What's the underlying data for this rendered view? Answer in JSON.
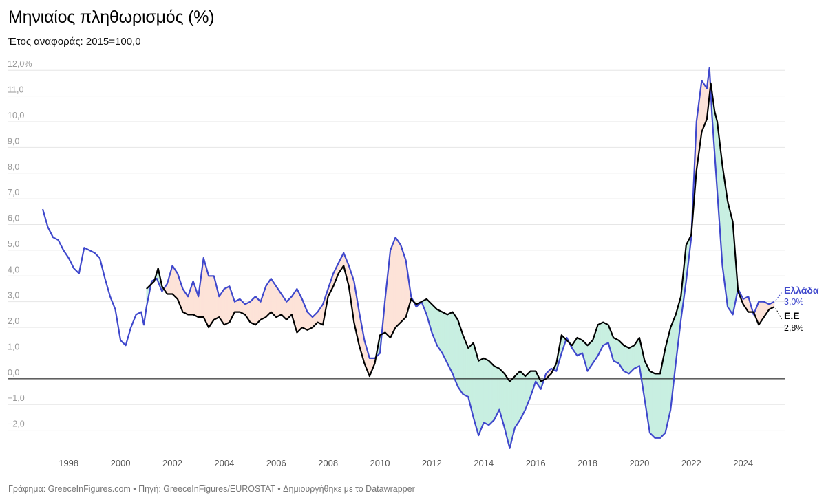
{
  "header": {
    "title": "Μηνιαίος πληθωρισμός (%)",
    "subtitle": "Έτος αναφοράς: 2015=100,0"
  },
  "footer": {
    "text": "Γράφημα: GreeceInFigures.com • Πηγή: GreeceInFigures/EUROSTAT • Δημιουργήθηκε με το Datawrapper"
  },
  "colors": {
    "greece": "#3f48cc",
    "eu": "#000000",
    "greece_above_fill": "#fde3d8",
    "eu_above_fill": "#c8efe1",
    "grid": "#e6e6e6",
    "zero_line": "#000000"
  },
  "chart_data": {
    "type": "line",
    "title": "Μηνιαίος πληθωρισμός (%)",
    "subtitle": "Έτος αναφοράς: 2015=100,0",
    "xlabel": "",
    "ylabel": "",
    "xlim": [
      1997.0,
      2025.6
    ],
    "ylim": [
      -3.0,
      12.3
    ],
    "y_ticks": [
      {
        "value": 12,
        "label": "12,0%"
      },
      {
        "value": 11,
        "label": "11,0"
      },
      {
        "value": 10,
        "label": "10,0"
      },
      {
        "value": 9,
        "label": "9,0"
      },
      {
        "value": 8,
        "label": "8,0"
      },
      {
        "value": 7,
        "label": "7,0"
      },
      {
        "value": 6,
        "label": "6,0"
      },
      {
        "value": 5,
        "label": "5,0"
      },
      {
        "value": 4,
        "label": "4,0"
      },
      {
        "value": 3,
        "label": "3,0"
      },
      {
        "value": 2,
        "label": "2,0"
      },
      {
        "value": 1,
        "label": "1,0"
      },
      {
        "value": 0,
        "label": "0,0"
      },
      {
        "value": -1,
        "label": "−1,0"
      },
      {
        "value": -2,
        "label": "−2,0"
      }
    ],
    "x_ticks": [
      {
        "value": 1998,
        "label": "1998"
      },
      {
        "value": 2000,
        "label": "2000"
      },
      {
        "value": 2002,
        "label": "2002"
      },
      {
        "value": 2004,
        "label": "2004"
      },
      {
        "value": 2006,
        "label": "2006"
      },
      {
        "value": 2008,
        "label": "2008"
      },
      {
        "value": 2010,
        "label": "2010"
      },
      {
        "value": 2012,
        "label": "2012"
      },
      {
        "value": 2014,
        "label": "2014"
      },
      {
        "value": 2016,
        "label": "2016"
      },
      {
        "value": 2018,
        "label": "2018"
      },
      {
        "value": 2020,
        "label": "2020"
      },
      {
        "value": 2022,
        "label": "2022"
      },
      {
        "value": 2024,
        "label": "2024"
      }
    ],
    "fills": [
      {
        "label": "Greece higher than EU",
        "color": "#fde3d8"
      },
      {
        "label": "EU higher than Greece",
        "color": "#c8efe1"
      }
    ],
    "series": [
      {
        "name": "Ελλάδα",
        "end_label": "Ελλάδα",
        "end_value_label": "3,0%",
        "color": "#3f48cc",
        "points": [
          [
            1997.0,
            6.6
          ],
          [
            1997.2,
            5.9
          ],
          [
            1997.4,
            5.5
          ],
          [
            1997.6,
            5.4
          ],
          [
            1997.8,
            5.0
          ],
          [
            1998.0,
            4.7
          ],
          [
            1998.2,
            4.3
          ],
          [
            1998.4,
            4.1
          ],
          [
            1998.6,
            5.1
          ],
          [
            1998.8,
            5.0
          ],
          [
            1999.0,
            4.9
          ],
          [
            1999.2,
            4.7
          ],
          [
            1999.4,
            3.9
          ],
          [
            1999.6,
            3.2
          ],
          [
            1999.8,
            2.7
          ],
          [
            2000.0,
            1.5
          ],
          [
            2000.2,
            1.3
          ],
          [
            2000.4,
            2.0
          ],
          [
            2000.6,
            2.5
          ],
          [
            2000.8,
            2.6
          ],
          [
            2000.9,
            2.1
          ],
          [
            2001.0,
            2.8
          ],
          [
            2001.2,
            3.8
          ],
          [
            2001.4,
            3.9
          ],
          [
            2001.6,
            3.4
          ],
          [
            2001.8,
            3.7
          ],
          [
            2002.0,
            4.4
          ],
          [
            2002.2,
            4.1
          ],
          [
            2002.4,
            3.5
          ],
          [
            2002.6,
            3.2
          ],
          [
            2002.8,
            3.8
          ],
          [
            2003.0,
            3.2
          ],
          [
            2003.2,
            4.7
          ],
          [
            2003.4,
            4.0
          ],
          [
            2003.6,
            4.0
          ],
          [
            2003.8,
            3.2
          ],
          [
            2004.0,
            3.5
          ],
          [
            2004.2,
            3.6
          ],
          [
            2004.4,
            3.0
          ],
          [
            2004.6,
            3.1
          ],
          [
            2004.8,
            2.9
          ],
          [
            2005.0,
            3.0
          ],
          [
            2005.2,
            3.2
          ],
          [
            2005.4,
            3.0
          ],
          [
            2005.6,
            3.6
          ],
          [
            2005.8,
            3.9
          ],
          [
            2006.0,
            3.6
          ],
          [
            2006.2,
            3.3
          ],
          [
            2006.4,
            3.0
          ],
          [
            2006.6,
            3.2
          ],
          [
            2006.8,
            3.5
          ],
          [
            2007.0,
            3.1
          ],
          [
            2007.2,
            2.6
          ],
          [
            2007.4,
            2.4
          ],
          [
            2007.6,
            2.6
          ],
          [
            2007.8,
            2.9
          ],
          [
            2008.0,
            3.5
          ],
          [
            2008.2,
            4.1
          ],
          [
            2008.4,
            4.5
          ],
          [
            2008.6,
            4.9
          ],
          [
            2008.8,
            4.4
          ],
          [
            2009.0,
            3.8
          ],
          [
            2009.2,
            2.6
          ],
          [
            2009.4,
            1.5
          ],
          [
            2009.6,
            0.8
          ],
          [
            2009.8,
            0.8
          ],
          [
            2010.0,
            1.0
          ],
          [
            2010.2,
            3.1
          ],
          [
            2010.4,
            5.0
          ],
          [
            2010.6,
            5.5
          ],
          [
            2010.8,
            5.2
          ],
          [
            2011.0,
            4.6
          ],
          [
            2011.2,
            3.2
          ],
          [
            2011.4,
            2.8
          ],
          [
            2011.6,
            3.0
          ],
          [
            2011.8,
            2.5
          ],
          [
            2012.0,
            1.8
          ],
          [
            2012.2,
            1.3
          ],
          [
            2012.4,
            1.0
          ],
          [
            2012.6,
            0.6
          ],
          [
            2012.8,
            0.2
          ],
          [
            2013.0,
            -0.3
          ],
          [
            2013.2,
            -0.6
          ],
          [
            2013.4,
            -0.7
          ],
          [
            2013.6,
            -1.5
          ],
          [
            2013.8,
            -2.2
          ],
          [
            2014.0,
            -1.7
          ],
          [
            2014.2,
            -1.8
          ],
          [
            2014.4,
            -1.6
          ],
          [
            2014.6,
            -1.2
          ],
          [
            2014.8,
            -1.9
          ],
          [
            2015.0,
            -2.7
          ],
          [
            2015.2,
            -1.9
          ],
          [
            2015.4,
            -1.6
          ],
          [
            2015.6,
            -1.2
          ],
          [
            2015.8,
            -0.7
          ],
          [
            2016.0,
            -0.1
          ],
          [
            2016.2,
            -0.4
          ],
          [
            2016.4,
            0.2
          ],
          [
            2016.6,
            0.4
          ],
          [
            2016.8,
            0.3
          ],
          [
            2017.0,
            1.0
          ],
          [
            2017.2,
            1.6
          ],
          [
            2017.4,
            1.2
          ],
          [
            2017.6,
            0.9
          ],
          [
            2017.8,
            1.0
          ],
          [
            2018.0,
            0.3
          ],
          [
            2018.2,
            0.6
          ],
          [
            2018.4,
            0.9
          ],
          [
            2018.6,
            1.3
          ],
          [
            2018.8,
            1.4
          ],
          [
            2019.0,
            0.7
          ],
          [
            2019.2,
            0.6
          ],
          [
            2019.4,
            0.3
          ],
          [
            2019.6,
            0.2
          ],
          [
            2019.8,
            0.4
          ],
          [
            2020.0,
            0.5
          ],
          [
            2020.2,
            -0.8
          ],
          [
            2020.4,
            -2.1
          ],
          [
            2020.6,
            -2.3
          ],
          [
            2020.8,
            -2.3
          ],
          [
            2021.0,
            -2.1
          ],
          [
            2021.2,
            -1.2
          ],
          [
            2021.4,
            0.6
          ],
          [
            2021.6,
            2.3
          ],
          [
            2021.8,
            3.8
          ],
          [
            2022.0,
            5.5
          ],
          [
            2022.2,
            10.0
          ],
          [
            2022.4,
            11.6
          ],
          [
            2022.6,
            11.3
          ],
          [
            2022.7,
            12.1
          ],
          [
            2022.8,
            10.2
          ],
          [
            2023.0,
            7.3
          ],
          [
            2023.2,
            4.4
          ],
          [
            2023.4,
            2.8
          ],
          [
            2023.6,
            2.5
          ],
          [
            2023.8,
            3.5
          ],
          [
            2024.0,
            3.1
          ],
          [
            2024.2,
            3.2
          ],
          [
            2024.4,
            2.5
          ],
          [
            2024.6,
            3.0
          ],
          [
            2024.8,
            3.0
          ],
          [
            2025.0,
            2.9
          ],
          [
            2025.2,
            3.0
          ]
        ]
      },
      {
        "name": "Ε.Ε",
        "end_label": "Ε.Ε",
        "end_value_label": "2,8%",
        "color": "#000000",
        "points": [
          [
            2001.0,
            3.5
          ],
          [
            2001.3,
            3.8
          ],
          [
            2001.45,
            4.3
          ],
          [
            2001.6,
            3.6
          ],
          [
            2001.8,
            3.3
          ],
          [
            2002.0,
            3.3
          ],
          [
            2002.2,
            3.1
          ],
          [
            2002.4,
            2.6
          ],
          [
            2002.6,
            2.5
          ],
          [
            2002.8,
            2.5
          ],
          [
            2003.0,
            2.4
          ],
          [
            2003.2,
            2.4
          ],
          [
            2003.4,
            2.0
          ],
          [
            2003.6,
            2.3
          ],
          [
            2003.8,
            2.4
          ],
          [
            2004.0,
            2.1
          ],
          [
            2004.2,
            2.2
          ],
          [
            2004.4,
            2.6
          ],
          [
            2004.6,
            2.6
          ],
          [
            2004.8,
            2.5
          ],
          [
            2005.0,
            2.2
          ],
          [
            2005.2,
            2.1
          ],
          [
            2005.4,
            2.3
          ],
          [
            2005.6,
            2.4
          ],
          [
            2005.8,
            2.6
          ],
          [
            2006.0,
            2.4
          ],
          [
            2006.2,
            2.5
          ],
          [
            2006.4,
            2.3
          ],
          [
            2006.6,
            2.5
          ],
          [
            2006.8,
            1.8
          ],
          [
            2007.0,
            2.0
          ],
          [
            2007.2,
            1.9
          ],
          [
            2007.4,
            2.0
          ],
          [
            2007.6,
            2.2
          ],
          [
            2007.8,
            2.1
          ],
          [
            2008.0,
            3.2
          ],
          [
            2008.2,
            3.6
          ],
          [
            2008.4,
            4.1
          ],
          [
            2008.6,
            4.4
          ],
          [
            2008.8,
            3.6
          ],
          [
            2009.0,
            2.2
          ],
          [
            2009.2,
            1.3
          ],
          [
            2009.4,
            0.6
          ],
          [
            2009.6,
            0.1
          ],
          [
            2009.8,
            0.6
          ],
          [
            2010.0,
            1.7
          ],
          [
            2010.2,
            1.8
          ],
          [
            2010.4,
            1.6
          ],
          [
            2010.6,
            2.0
          ],
          [
            2010.8,
            2.2
          ],
          [
            2011.0,
            2.4
          ],
          [
            2011.2,
            3.1
          ],
          [
            2011.4,
            2.9
          ],
          [
            2011.6,
            3.0
          ],
          [
            2011.8,
            3.1
          ],
          [
            2012.0,
            2.9
          ],
          [
            2012.2,
            2.7
          ],
          [
            2012.4,
            2.6
          ],
          [
            2012.6,
            2.5
          ],
          [
            2012.8,
            2.6
          ],
          [
            2013.0,
            2.3
          ],
          [
            2013.2,
            1.7
          ],
          [
            2013.4,
            1.2
          ],
          [
            2013.6,
            1.4
          ],
          [
            2013.8,
            0.7
          ],
          [
            2014.0,
            0.8
          ],
          [
            2014.2,
            0.7
          ],
          [
            2014.4,
            0.5
          ],
          [
            2014.6,
            0.4
          ],
          [
            2014.8,
            0.2
          ],
          [
            2015.0,
            -0.1
          ],
          [
            2015.2,
            0.1
          ],
          [
            2015.4,
            0.3
          ],
          [
            2015.6,
            0.1
          ],
          [
            2015.8,
            0.3
          ],
          [
            2016.0,
            0.3
          ],
          [
            2016.2,
            -0.1
          ],
          [
            2016.4,
            0.0
          ],
          [
            2016.6,
            0.2
          ],
          [
            2016.8,
            0.6
          ],
          [
            2017.0,
            1.7
          ],
          [
            2017.2,
            1.5
          ],
          [
            2017.4,
            1.3
          ],
          [
            2017.6,
            1.6
          ],
          [
            2017.8,
            1.5
          ],
          [
            2018.0,
            1.3
          ],
          [
            2018.2,
            1.5
          ],
          [
            2018.4,
            2.1
          ],
          [
            2018.6,
            2.2
          ],
          [
            2018.8,
            2.1
          ],
          [
            2019.0,
            1.6
          ],
          [
            2019.2,
            1.5
          ],
          [
            2019.4,
            1.3
          ],
          [
            2019.6,
            1.2
          ],
          [
            2019.8,
            1.3
          ],
          [
            2020.0,
            1.6
          ],
          [
            2020.2,
            0.7
          ],
          [
            2020.4,
            0.3
          ],
          [
            2020.6,
            0.2
          ],
          [
            2020.8,
            0.2
          ],
          [
            2021.0,
            1.2
          ],
          [
            2021.2,
            2.0
          ],
          [
            2021.4,
            2.5
          ],
          [
            2021.6,
            3.2
          ],
          [
            2021.8,
            5.2
          ],
          [
            2022.0,
            5.6
          ],
          [
            2022.2,
            8.1
          ],
          [
            2022.4,
            9.6
          ],
          [
            2022.6,
            10.1
          ],
          [
            2022.75,
            11.5
          ],
          [
            2022.9,
            10.4
          ],
          [
            2023.0,
            10.0
          ],
          [
            2023.2,
            8.3
          ],
          [
            2023.4,
            6.9
          ],
          [
            2023.6,
            6.1
          ],
          [
            2023.8,
            3.4
          ],
          [
            2024.0,
            2.9
          ],
          [
            2024.2,
            2.6
          ],
          [
            2024.4,
            2.6
          ],
          [
            2024.6,
            2.1
          ],
          [
            2024.8,
            2.4
          ],
          [
            2025.0,
            2.7
          ],
          [
            2025.2,
            2.8
          ]
        ]
      }
    ]
  }
}
